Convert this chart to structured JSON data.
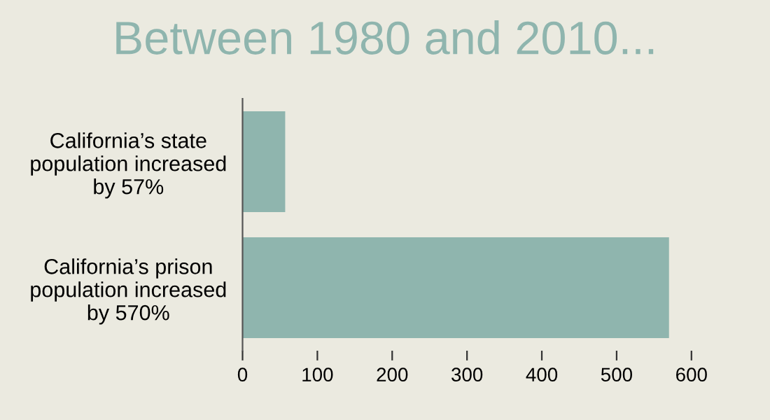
{
  "chart_data": {
    "type": "bar",
    "orientation": "horizontal",
    "title": "Between 1980 and 2010...",
    "categories": [
      "California’s state\npopulation increased\nby 57%",
      "California’s prison\npopulation increased\nby 570%"
    ],
    "values": [
      57,
      570
    ],
    "color": "#8fb5ae",
    "xlim": [
      0,
      600
    ],
    "xticks": [
      0,
      100,
      200,
      300,
      400,
      500,
      600
    ],
    "grid": false,
    "legend": false
  }
}
